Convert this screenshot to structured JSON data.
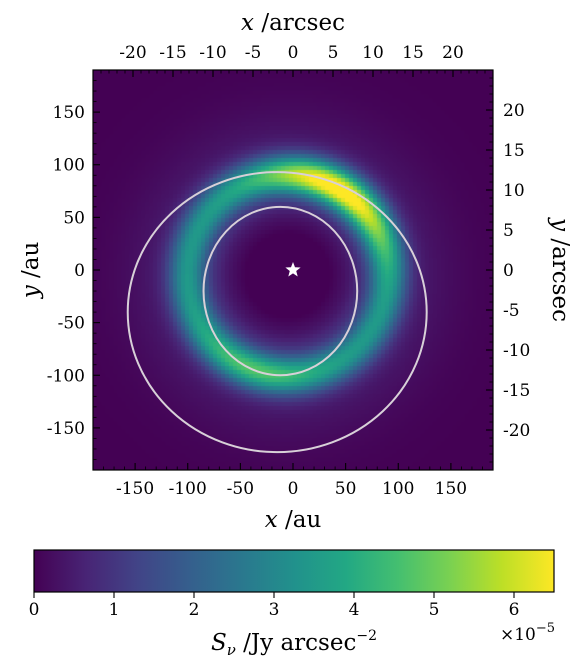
{
  "chart_data": {
    "type": "heatmap",
    "title": "",
    "xlabel": "x /au",
    "ylabel": "y /au",
    "x2label": "x /arcsec",
    "y2label": "y /arcsec",
    "xlim": [
      -190,
      190
    ],
    "ylim": [
      -190,
      190
    ],
    "x_ticks": [
      -150,
      -100,
      -50,
      0,
      50,
      100,
      150
    ],
    "y_ticks": [
      -150,
      -100,
      -50,
      0,
      50,
      100,
      150
    ],
    "x2_ticks": [
      -20,
      -15,
      -10,
      -5,
      0,
      5,
      10,
      15,
      20
    ],
    "y2_ticks": [
      -20,
      -15,
      -10,
      -5,
      0,
      5,
      10,
      15,
      20
    ],
    "au_per_arcsec": 7.6,
    "colormap": "viridis",
    "colorbar": {
      "label": "S_ν /Jy arcsec^-2",
      "label_main": "S",
      "label_sub": "ν",
      "label_unit": " /Jy arcsec",
      "label_exp": "−2",
      "range": [
        0,
        6.5
      ],
      "ticks": [
        0,
        1,
        2,
        3,
        4,
        5,
        6
      ],
      "scale_text": "×10",
      "scale_exp": "−5"
    },
    "disk_model": {
      "ring_center_au": [
        -5,
        -5
      ],
      "ring_radius_au": 95,
      "ring_width_au": 18,
      "peak_position_angle_deg": 60,
      "peak_value": 6.5,
      "halo_value": 0.9,
      "inner_cavity_value": 0.0
    },
    "overlays": {
      "outer_ellipse": {
        "center_au": [
          -15,
          -40
        ],
        "radius_au": [
          142,
          133
        ]
      },
      "inner_ellipse": {
        "center_au": [
          -12,
          -20
        ],
        "radius_au": [
          73,
          80
        ]
      },
      "ellipse_color": "#d8d0d8",
      "star_position_au": [
        0,
        0
      ],
      "star_color": "#ffffff"
    }
  }
}
